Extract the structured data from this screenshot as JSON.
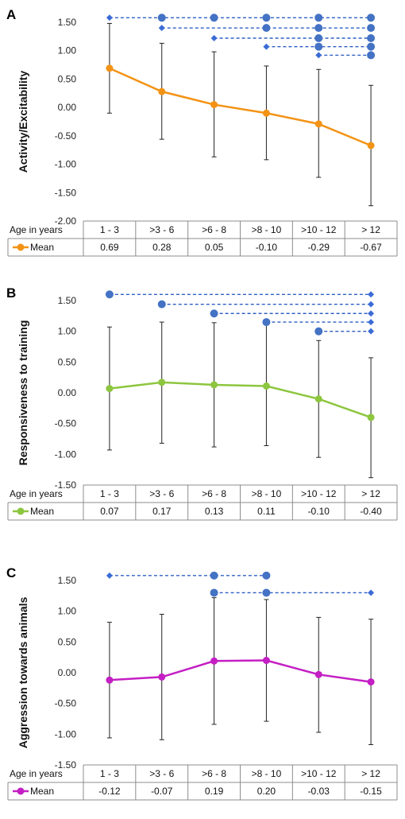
{
  "chart_data": [
    {
      "type": "line",
      "panel_label": "A",
      "ylabel": "Activity/Excitability",
      "categories": [
        "1 - 3",
        ">3 - 6",
        ">6 - 8",
        ">8 - 10",
        ">10 - 12",
        "> 12"
      ],
      "row_header": "Age in years",
      "legend_label": "Mean",
      "values": [
        0.69,
        0.28,
        0.05,
        -0.1,
        -0.29,
        -0.67
      ],
      "value_labels": [
        "0.69",
        "0.28",
        "0.05",
        "-0.10",
        "-0.29",
        "-0.67"
      ],
      "error_low": [
        -0.1,
        -0.56,
        -0.87,
        -0.92,
        -1.23,
        -1.73
      ],
      "error_high": [
        1.48,
        1.13,
        0.98,
        0.73,
        0.67,
        0.39
      ],
      "ylim": [
        -2.0,
        1.5
      ],
      "yticks": [
        "-2.00",
        "-1.50",
        "-1.00",
        "-0.50",
        "0.00",
        "0.50",
        "1.00",
        "1.50"
      ],
      "ytick_values": [
        -2.0,
        -1.5,
        -1.0,
        -0.5,
        0.0,
        0.5,
        1.0,
        1.5
      ],
      "color": "#F39315",
      "bracket_color": "#2F5FC4",
      "comparisons": [
        {
          "level": 1.58,
          "points": [
            0,
            1,
            2,
            3,
            4,
            5
          ],
          "shapes": [
            "diamond",
            "circle",
            "circle",
            "circle",
            "circle",
            "circle"
          ]
        },
        {
          "level": 1.4,
          "points": [
            1,
            3,
            4,
            5
          ],
          "shapes": [
            "diamond",
            "circle",
            "circle",
            "circle"
          ]
        },
        {
          "level": 1.22,
          "points": [
            2,
            4,
            5
          ],
          "shapes": [
            "diamond",
            "circle",
            "circle"
          ]
        },
        {
          "level": 1.07,
          "points": [
            3,
            4,
            5
          ],
          "shapes": [
            "diamond",
            "circle",
            "circle"
          ]
        },
        {
          "level": 0.92,
          "points": [
            4,
            5
          ],
          "shapes": [
            "diamond",
            "circle"
          ]
        }
      ]
    },
    {
      "type": "line",
      "panel_label": "B",
      "ylabel": "Responsiveness to training",
      "categories": [
        "1 - 3",
        ">3 - 6",
        ">6 - 8",
        ">8 - 10",
        ">10 - 12",
        "> 12"
      ],
      "row_header": "Age in years",
      "legend_label": "Mean",
      "values": [
        0.07,
        0.17,
        0.13,
        0.11,
        -0.1,
        -0.4
      ],
      "value_labels": [
        "0.07",
        "0.17",
        "0.13",
        "0.11",
        "-0.10",
        "-0.40"
      ],
      "error_low": [
        -0.93,
        -0.82,
        -0.88,
        -0.86,
        -1.05,
        -1.38
      ],
      "error_high": [
        1.07,
        1.15,
        1.14,
        1.12,
        0.85,
        0.57
      ],
      "ylim": [
        -1.5,
        1.5
      ],
      "yticks": [
        "-1.50",
        "-1.00",
        "-0.50",
        "0.00",
        "0.50",
        "1.00",
        "1.50"
      ],
      "ytick_values": [
        -1.5,
        -1.0,
        -0.5,
        0.0,
        0.5,
        1.0,
        1.5
      ],
      "color": "#8DC63F",
      "bracket_color": "#2F5FC4",
      "comparisons": [
        {
          "level": 1.6,
          "points": [
            0,
            5
          ],
          "shapes": [
            "circle",
            "diamond"
          ]
        },
        {
          "level": 1.44,
          "points": [
            1,
            5
          ],
          "shapes": [
            "circle",
            "diamond"
          ]
        },
        {
          "level": 1.29,
          "points": [
            2,
            5
          ],
          "shapes": [
            "circle",
            "diamond"
          ]
        },
        {
          "level": 1.15,
          "points": [
            3,
            5
          ],
          "shapes": [
            "circle",
            "diamond"
          ]
        },
        {
          "level": 1.0,
          "points": [
            4,
            5
          ],
          "shapes": [
            "circle",
            "diamond"
          ]
        }
      ]
    },
    {
      "type": "line",
      "panel_label": "C",
      "ylabel": "Aggression towards animals",
      "categories": [
        "1 - 3",
        ">3 - 6",
        ">6 - 8",
        ">8 - 10",
        ">10 - 12",
        "> 12"
      ],
      "row_header": "Age in years",
      "legend_label": "Mean",
      "values": [
        -0.12,
        -0.07,
        0.19,
        0.2,
        -0.03,
        -0.15
      ],
      "value_labels": [
        "-0.12",
        "-0.07",
        "0.19",
        "0.20",
        "-0.03",
        "-0.15"
      ],
      "error_low": [
        -1.06,
        -1.09,
        -0.84,
        -0.79,
        -0.97,
        -1.17
      ],
      "error_high": [
        0.82,
        0.95,
        1.22,
        1.19,
        0.9,
        0.87
      ],
      "ylim": [
        -1.5,
        1.5
      ],
      "yticks": [
        "-1.50",
        "-1.00",
        "-0.50",
        "0.00",
        "0.50",
        "1.00",
        "1.50"
      ],
      "ytick_values": [
        -1.5,
        -1.0,
        -0.5,
        0.0,
        0.5,
        1.0,
        1.5
      ],
      "color": "#C41FC4",
      "bracket_color": "#2F5FC4",
      "comparisons": [
        {
          "level": 1.58,
          "points": [
            0,
            2,
            3
          ],
          "shapes": [
            "diamond",
            "circle",
            "circle"
          ]
        },
        {
          "level": 1.3,
          "points": [
            2,
            3,
            5
          ],
          "shapes": [
            "circle",
            "circle",
            "diamond"
          ]
        }
      ]
    }
  ]
}
